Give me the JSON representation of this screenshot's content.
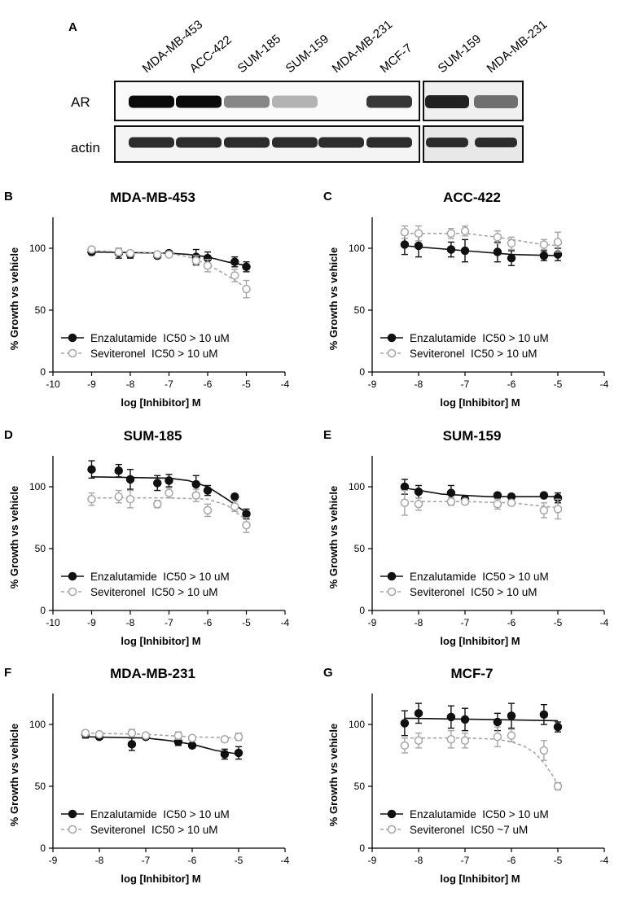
{
  "panel_a": {
    "letter": "A",
    "lanes_left": [
      "MDA-MB-453",
      "ACC-422",
      "SUM-185",
      "SUM-159",
      "MDA-MB-231",
      "MCF-7"
    ],
    "lanes_right": [
      "SUM-159",
      "MDA-MB-231"
    ],
    "rows": [
      "AR",
      "actin"
    ],
    "ar_band_intensity_left": [
      1.0,
      1.0,
      0.45,
      0.25,
      0.0,
      0.8
    ],
    "ar_band_intensity_right": [
      0.9,
      0.55
    ]
  },
  "chart_data": [
    {
      "letter": "B",
      "type": "scatter",
      "title": "MDA-MB-453",
      "xlabel": "log [Inhibitor] M",
      "ylabel": "% Growth vs vehicle",
      "xlim": [
        -10,
        -4
      ],
      "ylim": [
        0,
        125
      ],
      "xticks": [
        "-10",
        "-9",
        "-8",
        "-7",
        "-6",
        "-5",
        "-4"
      ],
      "yticks": [
        "0",
        "50",
        "100"
      ],
      "legend": "lower-left",
      "series": [
        {
          "name": "Enzalutamide  IC50 > 10 uM",
          "style": "filled",
          "x": [
            -9,
            -8.3,
            -8,
            -7.3,
            -7,
            -6.3,
            -6,
            -5.3,
            -5
          ],
          "y": [
            97,
            96,
            95,
            94,
            96,
            93,
            92,
            89,
            85
          ],
          "err": [
            2,
            4,
            3,
            2,
            2,
            6,
            5,
            4,
            4
          ],
          "fit": [
            [
              -9,
              97
            ],
            [
              -7,
              96
            ],
            [
              -6.5,
              95
            ],
            [
              -6,
              93
            ],
            [
              -5.5,
              89
            ],
            [
              -5,
              86
            ]
          ]
        },
        {
          "name": "Seviteronel  IC50 > 10 uM",
          "style": "open",
          "x": [
            -9,
            -8.3,
            -8,
            -7.3,
            -7,
            -6.3,
            -6,
            -5.3,
            -5
          ],
          "y": [
            99,
            97,
            96,
            95,
            95,
            90,
            86,
            78,
            67
          ],
          "err": [
            2,
            3,
            2,
            2,
            2,
            4,
            5,
            5,
            7
          ],
          "fit": [
            [
              -9,
              98
            ],
            [
              -7,
              96
            ],
            [
              -6.5,
              93
            ],
            [
              -6,
              87
            ],
            [
              -5.5,
              78
            ],
            [
              -5,
              68
            ]
          ]
        }
      ]
    },
    {
      "letter": "C",
      "type": "scatter",
      "title": "ACC-422",
      "xlabel": "log [Inhibitor] M",
      "ylabel": "% Growth vs vehicle",
      "xlim": [
        -9,
        -4
      ],
      "ylim": [
        0,
        125
      ],
      "xticks": [
        "-9",
        "-8",
        "-7",
        "-6",
        "-5",
        "-4"
      ],
      "yticks": [
        "0",
        "50",
        "100"
      ],
      "legend": "lower-left",
      "series": [
        {
          "name": "Enzalutamide  IC50 > 10 uM",
          "style": "filled",
          "x": [
            -8.3,
            -8,
            -7.3,
            -7,
            -6.3,
            -6,
            -5.3,
            -5
          ],
          "y": [
            103,
            102,
            99,
            98,
            97,
            92,
            94,
            95
          ],
          "err": [
            8,
            9,
            6,
            9,
            8,
            6,
            4,
            5
          ],
          "fit": [
            [
              -8.3,
              102
            ],
            [
              -7,
              98
            ],
            [
              -6,
              95
            ],
            [
              -5,
              94
            ]
          ]
        },
        {
          "name": "Seviteronel  IC50 > 10 uM",
          "style": "open",
          "x": [
            -8.3,
            -8,
            -7.3,
            -7,
            -6.3,
            -6,
            -5.3,
            -5
          ],
          "y": [
            113,
            112,
            112,
            114,
            109,
            104,
            103,
            105
          ],
          "err": [
            5,
            6,
            4,
            4,
            5,
            5,
            4,
            8
          ],
          "fit": [
            [
              -8.3,
              112
            ],
            [
              -7,
              112
            ],
            [
              -6.3,
              109
            ],
            [
              -5.5,
              104
            ],
            [
              -5,
              102
            ]
          ]
        }
      ]
    },
    {
      "letter": "D",
      "type": "scatter",
      "title": "SUM-185",
      "xlabel": "log [Inhibitor] M",
      "ylabel": "% Growth vs vehicle",
      "xlim": [
        -10,
        -4
      ],
      "ylim": [
        0,
        125
      ],
      "xticks": [
        "-10",
        "-9",
        "-8",
        "-7",
        "-6",
        "-5",
        "-4"
      ],
      "yticks": [
        "0",
        "50",
        "100"
      ],
      "legend": "lower-left",
      "series": [
        {
          "name": "Enzalutamide  IC50 > 10 uM",
          "style": "filled",
          "x": [
            -9,
            -8.3,
            -8,
            -7.3,
            -7,
            -6.3,
            -6,
            -5.3,
            -5
          ],
          "y": [
            114,
            113,
            106,
            103,
            105,
            102,
            97,
            92,
            78
          ],
          "err": [
            7,
            5,
            8,
            6,
            5,
            7,
            4,
            2,
            4
          ],
          "fit": [
            [
              -9,
              108
            ],
            [
              -7,
              107
            ],
            [
              -6.5,
              105
            ],
            [
              -6,
              100
            ],
            [
              -5.5,
              90
            ],
            [
              -5,
              79
            ]
          ]
        },
        {
          "name": "Seviteronel  IC50 > 10 uM",
          "style": "open",
          "x": [
            -9,
            -8.3,
            -8,
            -7.3,
            -7,
            -6.3,
            -6,
            -5.3,
            -5
          ],
          "y": [
            90,
            92,
            90,
            86,
            95,
            93,
            81,
            84,
            69
          ],
          "err": [
            5,
            5,
            7,
            3,
            4,
            5,
            5,
            4,
            6
          ],
          "fit": [
            [
              -9,
              91
            ],
            [
              -7,
              91
            ],
            [
              -6,
              90
            ],
            [
              -5.5,
              85
            ],
            [
              -5,
              73
            ]
          ]
        }
      ]
    },
    {
      "letter": "E",
      "type": "scatter",
      "title": "SUM-159",
      "xlabel": "log [Inhibitor] M",
      "ylabel": "% Growth vs vehicle",
      "xlim": [
        -9,
        -4
      ],
      "ylim": [
        0,
        125
      ],
      "xticks": [
        "-9",
        "-8",
        "-7",
        "-6",
        "-5",
        "-4"
      ],
      "yticks": [
        "0",
        "50",
        "100"
      ],
      "legend": "lower-left",
      "series": [
        {
          "name": "Enzalutamide  IC50 > 10 uM",
          "style": "filled",
          "x": [
            -8.3,
            -8,
            -7.3,
            -7,
            -6.3,
            -6,
            -5.3,
            -5
          ],
          "y": [
            100,
            96,
            95,
            90,
            93,
            92,
            93,
            91
          ],
          "err": [
            6,
            5,
            6,
            2,
            2,
            2,
            2,
            4
          ],
          "fit": [
            [
              -8.3,
              99
            ],
            [
              -7.5,
              94
            ],
            [
              -6.5,
              92
            ],
            [
              -5,
              92
            ]
          ]
        },
        {
          "name": "Seviteronel  IC50 > 10 uM",
          "style": "open",
          "x": [
            -8.3,
            -8,
            -7.3,
            -7,
            -6.3,
            -6,
            -5.3,
            -5
          ],
          "y": [
            87,
            86,
            88,
            88,
            86,
            87,
            81,
            82
          ],
          "err": [
            10,
            5,
            3,
            2,
            4,
            2,
            6,
            8
          ],
          "fit": [
            [
              -8.3,
              88
            ],
            [
              -7,
              88
            ],
            [
              -6,
              87
            ],
            [
              -5.5,
              85
            ],
            [
              -5,
              83
            ]
          ]
        }
      ]
    },
    {
      "letter": "F",
      "type": "scatter",
      "title": "MDA-MB-231",
      "xlabel": "log [Inhibitor] M",
      "ylabel": "% Growth vs vehicle",
      "xlim": [
        -9,
        -4
      ],
      "ylim": [
        0,
        125
      ],
      "xticks": [
        "-9",
        "-8",
        "-7",
        "-6",
        "-5",
        "-4"
      ],
      "yticks": [
        "0",
        "50",
        "100"
      ],
      "legend": "lower-left",
      "series": [
        {
          "name": "Enzalutamide  IC50 > 10 uM",
          "style": "filled",
          "x": [
            -8.3,
            -8,
            -7.3,
            -7,
            -6.3,
            -6,
            -5.3,
            -5
          ],
          "y": [
            92,
            90,
            84,
            90,
            86,
            83,
            76,
            77
          ],
          "err": [
            3,
            2,
            5,
            2,
            3,
            2,
            4,
            5
          ],
          "fit": [
            [
              -8.3,
              90
            ],
            [
              -7,
              89
            ],
            [
              -6.5,
              87
            ],
            [
              -6,
              84
            ],
            [
              -5.5,
              79
            ],
            [
              -5,
              76
            ]
          ]
        },
        {
          "name": "Seviteronel  IC50 > 10 uM",
          "style": "open",
          "x": [
            -8.3,
            -8,
            -7.3,
            -7,
            -6.3,
            -6,
            -5.3,
            -5
          ],
          "y": [
            93,
            92,
            93,
            91,
            91,
            89,
            88,
            90
          ],
          "err": [
            2,
            2,
            3,
            2,
            3,
            2,
            2,
            3
          ],
          "fit": [
            [
              -8.3,
              93
            ],
            [
              -7,
              92
            ],
            [
              -6,
              90
            ],
            [
              -5,
              89
            ]
          ]
        }
      ]
    },
    {
      "letter": "G",
      "type": "scatter",
      "title": "MCF-7",
      "xlabel": "log [Inhibitor] M",
      "ylabel": "% Growth vs vehicle",
      "xlim": [
        -9,
        -4
      ],
      "ylim": [
        0,
        125
      ],
      "xticks": [
        "-9",
        "-8",
        "-7",
        "-6",
        "-5",
        "-4"
      ],
      "yticks": [
        "0",
        "50",
        "100"
      ],
      "legend": "lower-left",
      "series": [
        {
          "name": "Enzalutamide  IC50 > 10 uM",
          "style": "filled",
          "x": [
            -8.3,
            -8,
            -7.3,
            -7,
            -6.3,
            -6,
            -5.3,
            -5
          ],
          "y": [
            101,
            109,
            106,
            104,
            102,
            107,
            108,
            98
          ],
          "err": [
            10,
            8,
            9,
            9,
            7,
            10,
            8,
            4
          ],
          "fit": [
            [
              -8.3,
              105
            ],
            [
              -6.5,
              104
            ],
            [
              -5,
              103
            ]
          ]
        },
        {
          "name": "Seviteronel  IC50 ~7 uM",
          "style": "open",
          "x": [
            -8.3,
            -8,
            -7.3,
            -7,
            -6.3,
            -6,
            -5.3,
            -5
          ],
          "y": [
            83,
            87,
            88,
            87,
            90,
            91,
            79,
            50
          ],
          "err": [
            6,
            6,
            7,
            6,
            8,
            5,
            8,
            3
          ],
          "fit": [
            [
              -8.3,
              89
            ],
            [
              -7,
              89
            ],
            [
              -6.3,
              88
            ],
            [
              -6,
              86
            ],
            [
              -5.7,
              82
            ],
            [
              -5.5,
              77
            ],
            [
              -5.3,
              69
            ],
            [
              -5.1,
              58
            ],
            [
              -5,
              51
            ]
          ]
        }
      ]
    }
  ]
}
